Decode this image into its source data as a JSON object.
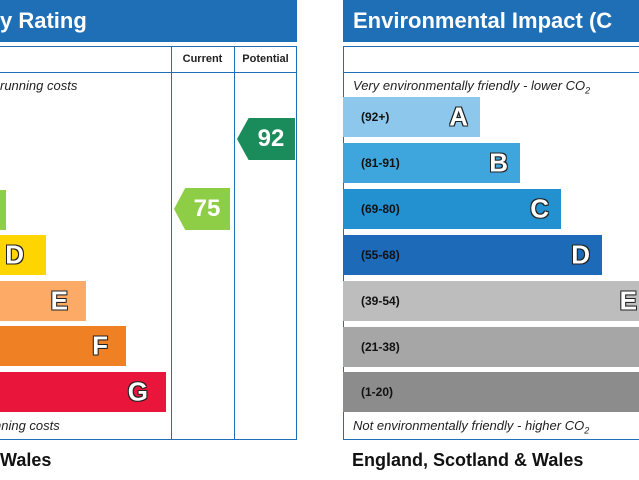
{
  "energy": {
    "title": "y Rating",
    "col_current": "Current",
    "col_potential": "Potential",
    "top_note": "running costs",
    "bottom_note": "nning costs",
    "footer": "Wales",
    "colors": {
      "A": "#008054",
      "B": "#19b459",
      "C": "#8dce46",
      "D": "#ffd500",
      "E": "#fcaa65",
      "F": "#ef8023",
      "G": "#e9153b"
    },
    "bands": [
      {
        "letter": "D"
      },
      {
        "letter": "E"
      },
      {
        "letter": "F"
      },
      {
        "letter": "G"
      }
    ],
    "current": {
      "value": "75",
      "color": "#8dce46"
    },
    "potential": {
      "value": "92",
      "color": "#1a8c5b"
    }
  },
  "environmental": {
    "title": "Environmental Impact (C",
    "top_note": "Very environmentally friendly - lower CO",
    "bottom_note": "Not environmentally friendly - higher CO",
    "co2_sub": "2",
    "footer": "England, Scotland & Wales",
    "bands": [
      {
        "range": "(92+)",
        "letter": "A",
        "color": "#8dc8ec"
      },
      {
        "range": "(81-91)",
        "letter": "B",
        "color": "#3fa6dd"
      },
      {
        "range": "(69-80)",
        "letter": "C",
        "color": "#2391d0"
      },
      {
        "range": "(55-68)",
        "letter": "D",
        "color": "#1d6bb8"
      },
      {
        "range": "(39-54)",
        "letter": "E",
        "color": "#bdbdbd"
      },
      {
        "range": "(21-38)",
        "letter": "",
        "color": "#a6a6a6"
      },
      {
        "range": "(1-20)",
        "letter": "",
        "color": "#8c8c8c"
      }
    ]
  },
  "chart_data": {
    "type": "table",
    "energy_rating": {
      "current": 75,
      "potential": 92
    },
    "environmental_bands": [
      "(92+)",
      "(81-91)",
      "(69-80)",
      "(55-68)",
      "(39-54)",
      "(21-38)",
      "(1-20)"
    ]
  }
}
